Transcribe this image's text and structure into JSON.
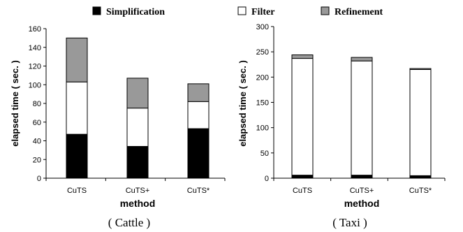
{
  "legend": [
    {
      "label": "Simplification",
      "color": "#000000"
    },
    {
      "label": "Filter",
      "color": "#ffffff"
    },
    {
      "label": "Refinement",
      "color": "#999999"
    }
  ],
  "chart_data": [
    {
      "type": "bar",
      "stacked": true,
      "title": "",
      "caption": "( Cattle )",
      "xlabel": "method",
      "ylabel": "elapsed time ( sec. )",
      "categories": [
        "CuTS",
        "CuTS+",
        "CuTS*"
      ],
      "series": [
        {
          "name": "Simplification",
          "color": "#000000",
          "values": [
            47,
            34,
            53
          ]
        },
        {
          "name": "Filter",
          "color": "#ffffff",
          "values": [
            56,
            41,
            29
          ]
        },
        {
          "name": "Refinement",
          "color": "#999999",
          "values": [
            47,
            32,
            19
          ]
        }
      ],
      "ylim": [
        0,
        160
      ],
      "yticks": [
        0,
        20,
        40,
        60,
        80,
        100,
        120,
        140,
        160
      ],
      "grid": false
    },
    {
      "type": "bar",
      "stacked": true,
      "title": "",
      "caption": "( Taxi )",
      "xlabel": "method",
      "ylabel": "elapsed time ( sec. )",
      "categories": [
        "CuTS",
        "CuTS+",
        "CuTS*"
      ],
      "series": [
        {
          "name": "Simplification",
          "color": "#000000",
          "values": [
            6,
            6,
            5
          ]
        },
        {
          "name": "Filter",
          "color": "#ffffff",
          "values": [
            231,
            226,
            210
          ]
        },
        {
          "name": "Refinement",
          "color": "#999999",
          "values": [
            7,
            7,
            2
          ]
        }
      ],
      "ylim": [
        0,
        300
      ],
      "yticks": [
        0,
        50,
        100,
        150,
        200,
        250,
        300
      ],
      "grid": false
    }
  ]
}
